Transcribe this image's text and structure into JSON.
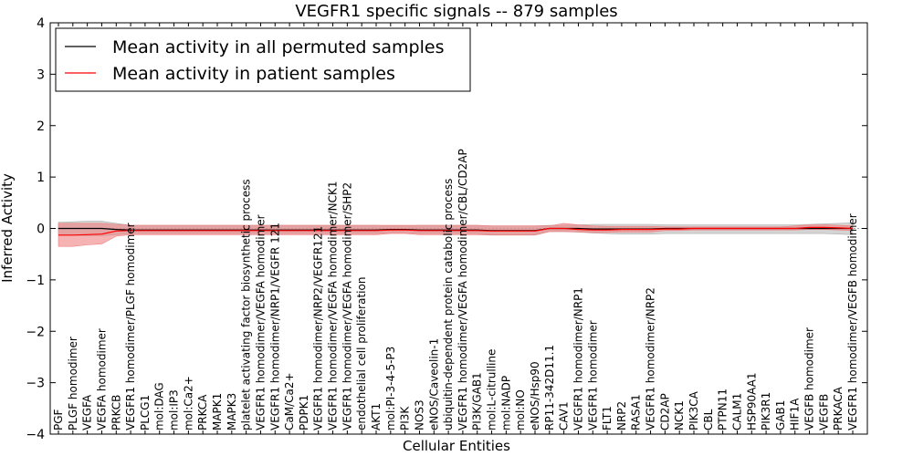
{
  "chart_data": {
    "type": "line",
    "title": "VEGFR1 specific signals -- 879 samples",
    "xlabel": "Cellular Entities",
    "ylabel": "Inferred Activity",
    "ylim": [
      -4,
      4
    ],
    "yticks": [
      "4",
      "3",
      "2",
      "1",
      "0",
      "−1",
      "−2",
      "−3",
      "−4"
    ],
    "grid": false,
    "legend_placement": "top-left",
    "categories": [
      "PGF",
      "PLGF homodimer",
      "VEGFA",
      "VEGFA homodimer",
      "PRKCB",
      "VEGFR1 homodimer/PLGF homodimer",
      "PLCG1",
      "mol:DAG",
      "mol:IP3",
      "mol:Ca2+",
      "PRKCA",
      "MAPK1",
      "MAPK3",
      "platelet activating factor biosynthetic process",
      "VEGFR1 homodimer/VEGFA homodimer",
      "VEGFR1 homodimer/NRP1/VEGFR 121",
      "CaM/Ca2+",
      "PDPK1",
      "VEGFR1 homodimer/NRP2/VEGFR121",
      "VEGFR1 homodimer/VEGFA homodimer/NCK1",
      "VEGFR1 homodimer/VEGFA homodimer/SHP2",
      "endothelial cell proliferation",
      "AKT1",
      "mol:PI-3-4-5-P3",
      "PI3K",
      "NOS3",
      "eNOS/Caveolin-1",
      "ubiquitin-dependent protein catabolic process",
      "VEGFR1 homodimer/VEGFA homodimer/CBL/CD2AP",
      "PI3K/GAB1",
      "mol:L-citrulline",
      "mol:NADP",
      "mol:NO",
      "eNOS/Hsp90",
      "RP11-342D11.1",
      "CAV1",
      "VEGFR1 homodimer/NRP1",
      "VEGFR1 homodimer",
      "FLT1",
      "NRP2",
      "RASA1",
      "VEGFR1 homodimer/NRP2",
      "CD2AP",
      "NCK1",
      "PIK3CA",
      "CBL",
      "PTPN11",
      "CALM1",
      "HSP90AA1",
      "PIK3R1",
      "GAB1",
      "HIF1A",
      "VEGFB homodimer",
      "VEGFB",
      "PRKACA",
      "VEGFR1 homodimer/VEGFB homodimer"
    ],
    "series": [
      {
        "name": "Mean activity in all permuted samples",
        "color": "#000000",
        "band_color": "#b0b0b0",
        "values": [
          0.0,
          0.0,
          0.0,
          0.0,
          -0.02,
          -0.03,
          -0.03,
          -0.03,
          -0.03,
          -0.03,
          -0.03,
          -0.03,
          -0.03,
          -0.03,
          -0.03,
          -0.03,
          -0.03,
          -0.03,
          -0.03,
          -0.03,
          -0.03,
          -0.03,
          -0.03,
          -0.02,
          -0.02,
          -0.03,
          -0.03,
          -0.03,
          -0.03,
          -0.03,
          -0.04,
          -0.04,
          -0.04,
          -0.04,
          0.0,
          0.0,
          0.0,
          -0.01,
          -0.01,
          -0.01,
          -0.01,
          -0.01,
          0.0,
          0.0,
          0.0,
          0.0,
          0.0,
          0.0,
          0.0,
          0.0,
          0.0,
          0.0,
          0.0,
          0.0,
          0.0,
          0.0
        ],
        "lower": [
          -0.12,
          -0.13,
          -0.14,
          -0.14,
          -0.12,
          -0.1,
          -0.1,
          -0.1,
          -0.1,
          -0.1,
          -0.1,
          -0.1,
          -0.1,
          -0.1,
          -0.1,
          -0.1,
          -0.1,
          -0.1,
          -0.1,
          -0.1,
          -0.1,
          -0.1,
          -0.1,
          -0.08,
          -0.08,
          -0.1,
          -0.1,
          -0.1,
          -0.1,
          -0.1,
          -0.12,
          -0.12,
          -0.12,
          -0.12,
          -0.06,
          -0.06,
          -0.07,
          -0.09,
          -0.1,
          -0.11,
          -0.11,
          -0.11,
          -0.1,
          -0.1,
          -0.1,
          -0.1,
          -0.1,
          -0.1,
          -0.1,
          -0.1,
          -0.1,
          -0.1,
          -0.1,
          -0.1,
          -0.11,
          -0.12
        ],
        "upper": [
          0.12,
          0.13,
          0.14,
          0.14,
          0.1,
          0.06,
          0.06,
          0.06,
          0.06,
          0.06,
          0.06,
          0.06,
          0.06,
          0.06,
          0.06,
          0.06,
          0.06,
          0.06,
          0.06,
          0.06,
          0.06,
          0.06,
          0.06,
          0.05,
          0.05,
          0.06,
          0.06,
          0.06,
          0.06,
          0.06,
          0.05,
          0.05,
          0.05,
          0.05,
          0.06,
          0.06,
          0.07,
          0.08,
          0.08,
          0.08,
          0.08,
          0.08,
          0.07,
          0.07,
          0.07,
          0.07,
          0.07,
          0.07,
          0.07,
          0.07,
          0.07,
          0.07,
          0.08,
          0.09,
          0.1,
          0.11
        ]
      },
      {
        "name": "Mean activity in patient samples",
        "color": "#ff0000",
        "band_color": "#f08080",
        "values": [
          -0.13,
          -0.13,
          -0.12,
          -0.11,
          -0.05,
          -0.04,
          -0.04,
          -0.04,
          -0.04,
          -0.04,
          -0.04,
          -0.04,
          -0.04,
          -0.04,
          -0.04,
          -0.04,
          -0.04,
          -0.04,
          -0.04,
          -0.04,
          -0.04,
          -0.04,
          -0.04,
          -0.03,
          -0.03,
          -0.04,
          -0.04,
          -0.04,
          -0.04,
          -0.04,
          -0.05,
          -0.05,
          -0.05,
          -0.05,
          0.0,
          0.0,
          -0.02,
          -0.03,
          -0.03,
          -0.02,
          -0.02,
          -0.02,
          -0.01,
          -0.01,
          0.0,
          0.0,
          0.0,
          0.0,
          0.0,
          0.0,
          0.0,
          0.0,
          0.02,
          0.02,
          0.01,
          0.0
        ],
        "lower": [
          -0.35,
          -0.35,
          -0.32,
          -0.3,
          -0.15,
          -0.12,
          -0.12,
          -0.12,
          -0.12,
          -0.12,
          -0.12,
          -0.12,
          -0.12,
          -0.12,
          -0.12,
          -0.12,
          -0.12,
          -0.12,
          -0.12,
          -0.12,
          -0.12,
          -0.12,
          -0.12,
          -0.1,
          -0.1,
          -0.12,
          -0.12,
          -0.12,
          -0.12,
          -0.12,
          -0.13,
          -0.13,
          -0.13,
          -0.13,
          -0.06,
          -0.06,
          -0.07,
          -0.08,
          -0.08,
          -0.07,
          -0.07,
          -0.07,
          -0.04,
          -0.04,
          -0.03,
          -0.03,
          -0.03,
          -0.03,
          -0.03,
          -0.03,
          -0.03,
          -0.03,
          -0.02,
          -0.02,
          -0.03,
          -0.04
        ],
        "upper": [
          0.1,
          0.1,
          0.1,
          0.1,
          0.08,
          0.06,
          0.06,
          0.06,
          0.06,
          0.06,
          0.06,
          0.06,
          0.06,
          0.06,
          0.06,
          0.06,
          0.06,
          0.06,
          0.06,
          0.06,
          0.06,
          0.06,
          0.06,
          0.06,
          0.06,
          0.06,
          0.06,
          0.06,
          0.06,
          0.06,
          0.05,
          0.05,
          0.05,
          0.05,
          0.05,
          0.1,
          0.07,
          0.05,
          0.04,
          0.04,
          0.04,
          0.04,
          0.03,
          0.03,
          0.03,
          0.03,
          0.03,
          0.03,
          0.03,
          0.03,
          0.03,
          0.05,
          0.07,
          0.07,
          0.06,
          0.05
        ]
      }
    ]
  }
}
